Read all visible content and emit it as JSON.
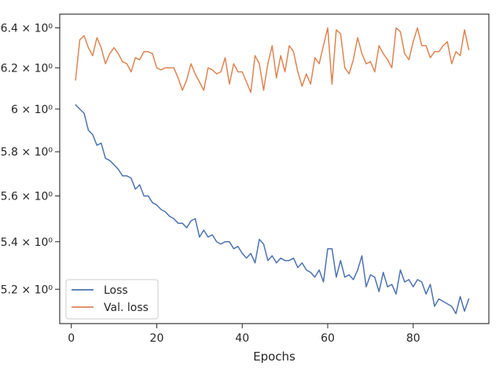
{
  "chart_data": {
    "type": "line",
    "title": "",
    "xlabel": "Epochs",
    "ylabel": "",
    "y_scale": "log",
    "xlim": [
      -2.7,
      97.7
    ],
    "ylim": [
      5.06,
      6.47
    ],
    "x_ticks": [
      0,
      20,
      40,
      60,
      80
    ],
    "x_tick_labels": [
      "0",
      "20",
      "40",
      "60",
      "80"
    ],
    "y_ticks": [
      5.2,
      5.4,
      5.6,
      5.8,
      6.0,
      6.2,
      6.4
    ],
    "y_tick_labels": [
      "5.2 × 10⁰",
      "5.4 × 10⁰",
      "5.6 × 10⁰",
      "5.8 × 10⁰",
      "6 × 10⁰",
      "6.2 × 10⁰",
      "6.4 × 10⁰"
    ],
    "grid": false,
    "legend_position": "lower-left",
    "x": [
      1,
      2,
      3,
      4,
      5,
      6,
      7,
      8,
      9,
      10,
      11,
      12,
      13,
      14,
      15,
      16,
      17,
      18,
      19,
      20,
      21,
      22,
      23,
      24,
      25,
      26,
      27,
      28,
      29,
      30,
      31,
      32,
      33,
      34,
      35,
      36,
      37,
      38,
      39,
      40,
      41,
      42,
      43,
      44,
      45,
      46,
      47,
      48,
      49,
      50,
      51,
      52,
      53,
      54,
      55,
      56,
      57,
      58,
      59,
      60,
      61,
      62,
      63,
      64,
      65,
      66,
      67,
      68,
      69,
      70,
      71,
      72,
      73,
      74,
      75,
      76,
      77,
      78,
      79,
      80,
      81,
      82,
      83,
      84,
      85,
      86,
      87,
      88,
      89,
      90,
      91,
      92,
      93
    ],
    "series": [
      {
        "name": "Loss",
        "color": "#4c72b0",
        "values": [
          6.02,
          6.0,
          5.98,
          5.9,
          5.88,
          5.83,
          5.84,
          5.77,
          5.76,
          5.74,
          5.72,
          5.69,
          5.69,
          5.68,
          5.63,
          5.65,
          5.6,
          5.6,
          5.57,
          5.56,
          5.54,
          5.53,
          5.51,
          5.5,
          5.48,
          5.48,
          5.46,
          5.49,
          5.5,
          5.42,
          5.45,
          5.42,
          5.43,
          5.4,
          5.39,
          5.4,
          5.4,
          5.37,
          5.38,
          5.35,
          5.33,
          5.35,
          5.31,
          5.41,
          5.39,
          5.32,
          5.34,
          5.31,
          5.33,
          5.32,
          5.32,
          5.33,
          5.29,
          5.31,
          5.28,
          5.27,
          5.25,
          5.28,
          5.23,
          5.37,
          5.37,
          5.25,
          5.32,
          5.25,
          5.26,
          5.24,
          5.28,
          5.34,
          5.21,
          5.26,
          5.25,
          5.19,
          5.27,
          5.21,
          5.22,
          5.18,
          5.28,
          5.23,
          5.24,
          5.21,
          5.24,
          5.23,
          5.18,
          5.22,
          5.13,
          5.16,
          5.15,
          5.14,
          5.13,
          5.1,
          5.17,
          5.11,
          5.16
        ]
      },
      {
        "name": "Val. loss",
        "color": "#dd8452",
        "values": [
          6.14,
          6.34,
          6.36,
          6.3,
          6.26,
          6.35,
          6.3,
          6.22,
          6.27,
          6.3,
          6.27,
          6.23,
          6.22,
          6.18,
          6.25,
          6.24,
          6.28,
          6.28,
          6.27,
          6.2,
          6.19,
          6.2,
          6.2,
          6.2,
          6.15,
          6.09,
          6.14,
          6.22,
          6.17,
          6.13,
          6.09,
          6.2,
          6.19,
          6.17,
          6.18,
          6.25,
          6.12,
          6.22,
          6.18,
          6.18,
          6.13,
          6.08,
          6.26,
          6.22,
          6.09,
          6.22,
          6.31,
          6.15,
          6.26,
          6.18,
          6.31,
          6.28,
          6.18,
          6.11,
          6.17,
          6.12,
          6.25,
          6.22,
          6.31,
          6.4,
          6.12,
          6.39,
          6.37,
          6.2,
          6.17,
          6.24,
          6.35,
          6.27,
          6.22,
          6.23,
          6.18,
          6.31,
          6.27,
          6.24,
          6.2,
          6.4,
          6.38,
          6.27,
          6.24,
          6.33,
          6.4,
          6.31,
          6.31,
          6.25,
          6.28,
          6.28,
          6.31,
          6.33,
          6.22,
          6.28,
          6.26,
          6.39,
          6.29
        ]
      }
    ]
  }
}
